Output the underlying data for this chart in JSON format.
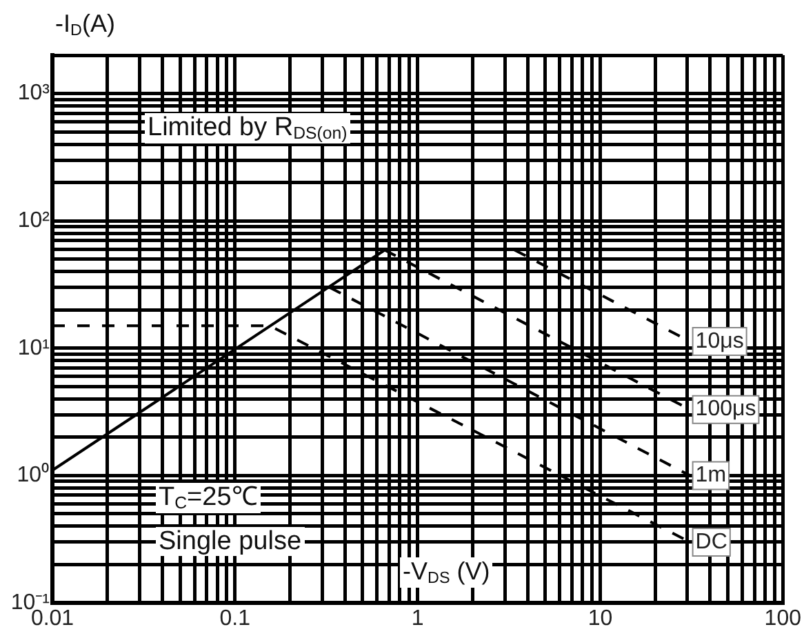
{
  "chart_data": {
    "type": "line",
    "xlabel": "-V$_{DS}$ (V)",
    "ylabel": "-I$_{D}$(A)",
    "log": "xy",
    "grid": true,
    "legend": false,
    "marker": "none",
    "xlim": [
      0.01,
      100
    ],
    "ylim": [
      0.1,
      2000
    ],
    "xticks": [
      {
        "value": 0.01,
        "label": "0.01"
      },
      {
        "value": 0.02,
        "label": null
      },
      {
        "value": 0.03,
        "label": null
      },
      {
        "value": 0.04,
        "label": null
      },
      {
        "value": 0.05,
        "label": null
      },
      {
        "value": 0.06,
        "label": null
      },
      {
        "value": 0.07,
        "label": null
      },
      {
        "value": 0.08,
        "label": null
      },
      {
        "value": 0.09,
        "label": null
      },
      {
        "value": 0.1,
        "label": "0.1"
      },
      {
        "value": 0.2,
        "label": null
      },
      {
        "value": 0.3,
        "label": null
      },
      {
        "value": 0.4,
        "label": null
      },
      {
        "value": 0.5,
        "label": null
      },
      {
        "value": 0.6,
        "label": null
      },
      {
        "value": 0.7,
        "label": null
      },
      {
        "value": 0.8,
        "label": null
      },
      {
        "value": 0.9,
        "label": null
      },
      {
        "value": 1,
        "label": "1"
      },
      {
        "value": 2,
        "label": null
      },
      {
        "value": 3,
        "label": null
      },
      {
        "value": 4,
        "label": null
      },
      {
        "value": 5,
        "label": null
      },
      {
        "value": 6,
        "label": null
      },
      {
        "value": 7,
        "label": null
      },
      {
        "value": 8,
        "label": null
      },
      {
        "value": 9,
        "label": null
      },
      {
        "value": 10,
        "label": "10"
      },
      {
        "value": 20,
        "label": null
      },
      {
        "value": 30,
        "label": null
      },
      {
        "value": 40,
        "label": null
      },
      {
        "value": 50,
        "label": null
      },
      {
        "value": 60,
        "label": null
      },
      {
        "value": 70,
        "label": null
      },
      {
        "value": 80,
        "label": null
      },
      {
        "value": 90,
        "label": null
      },
      {
        "value": 100,
        "label": "100"
      }
    ],
    "yticks": [
      {
        "value": 0.1,
        "label": "10⁻¹"
      },
      {
        "value": 0.2,
        "label": null
      },
      {
        "value": 0.3,
        "label": null
      },
      {
        "value": 0.4,
        "label": null
      },
      {
        "value": 0.5,
        "label": null
      },
      {
        "value": 0.6,
        "label": null
      },
      {
        "value": 0.7,
        "label": null
      },
      {
        "value": 0.8,
        "label": null
      },
      {
        "value": 0.9,
        "label": null
      },
      {
        "value": 1,
        "label": "10⁰"
      },
      {
        "value": 2,
        "label": null
      },
      {
        "value": 3,
        "label": null
      },
      {
        "value": 4,
        "label": null
      },
      {
        "value": 5,
        "label": null
      },
      {
        "value": 6,
        "label": null
      },
      {
        "value": 7,
        "label": null
      },
      {
        "value": 8,
        "label": null
      },
      {
        "value": 9,
        "label": null
      },
      {
        "value": 10,
        "label": "10¹"
      },
      {
        "value": 20,
        "label": null
      },
      {
        "value": 30,
        "label": null
      },
      {
        "value": 40,
        "label": null
      },
      {
        "value": 50,
        "label": null
      },
      {
        "value": 60,
        "label": null
      },
      {
        "value": 70,
        "label": null
      },
      {
        "value": 80,
        "label": null
      },
      {
        "value": 90,
        "label": null
      },
      {
        "value": 100,
        "label": "10²"
      },
      {
        "value": 200,
        "label": null
      },
      {
        "value": 300,
        "label": null
      },
      {
        "value": 400,
        "label": null
      },
      {
        "value": 500,
        "label": null
      },
      {
        "value": 600,
        "label": null
      },
      {
        "value": 700,
        "label": null
      },
      {
        "value": 800,
        "label": null
      },
      {
        "value": 900,
        "label": null
      },
      {
        "value": 1000,
        "label": "10³"
      },
      {
        "value": 2000,
        "label": null
      }
    ],
    "annotations": [
      "Limited by R$_{DS(on)}$",
      "T$_{C}$=25℃",
      "Single pulse"
    ],
    "series": [
      {
        "color": "#000000",
        "line_style": "solid",
        "x": [
          0.01,
          0.66
        ],
        "values": [
          1.1,
          59
        ]
      },
      {
        "name": "10μs",
        "color": "#000000",
        "line_style": "dashed",
        "x": [
          3.4,
          31
        ],
        "values": [
          59,
          11.3
        ]
      },
      {
        "name": "100μs",
        "color": "#000000",
        "line_style": "dashed",
        "x": [
          0.66,
          31
        ],
        "values": [
          59,
          3.3
        ]
      },
      {
        "name": "1m",
        "color": "#000000",
        "line_style": "dashed",
        "x": [
          0.33,
          31
        ],
        "values": [
          30,
          1.0
        ]
      },
      {
        "name": "DC",
        "color": "#000000",
        "line_style": "dashed",
        "x": [
          0.01,
          0.155,
          31
        ],
        "values": [
          15,
          15,
          0.3
        ]
      }
    ]
  }
}
